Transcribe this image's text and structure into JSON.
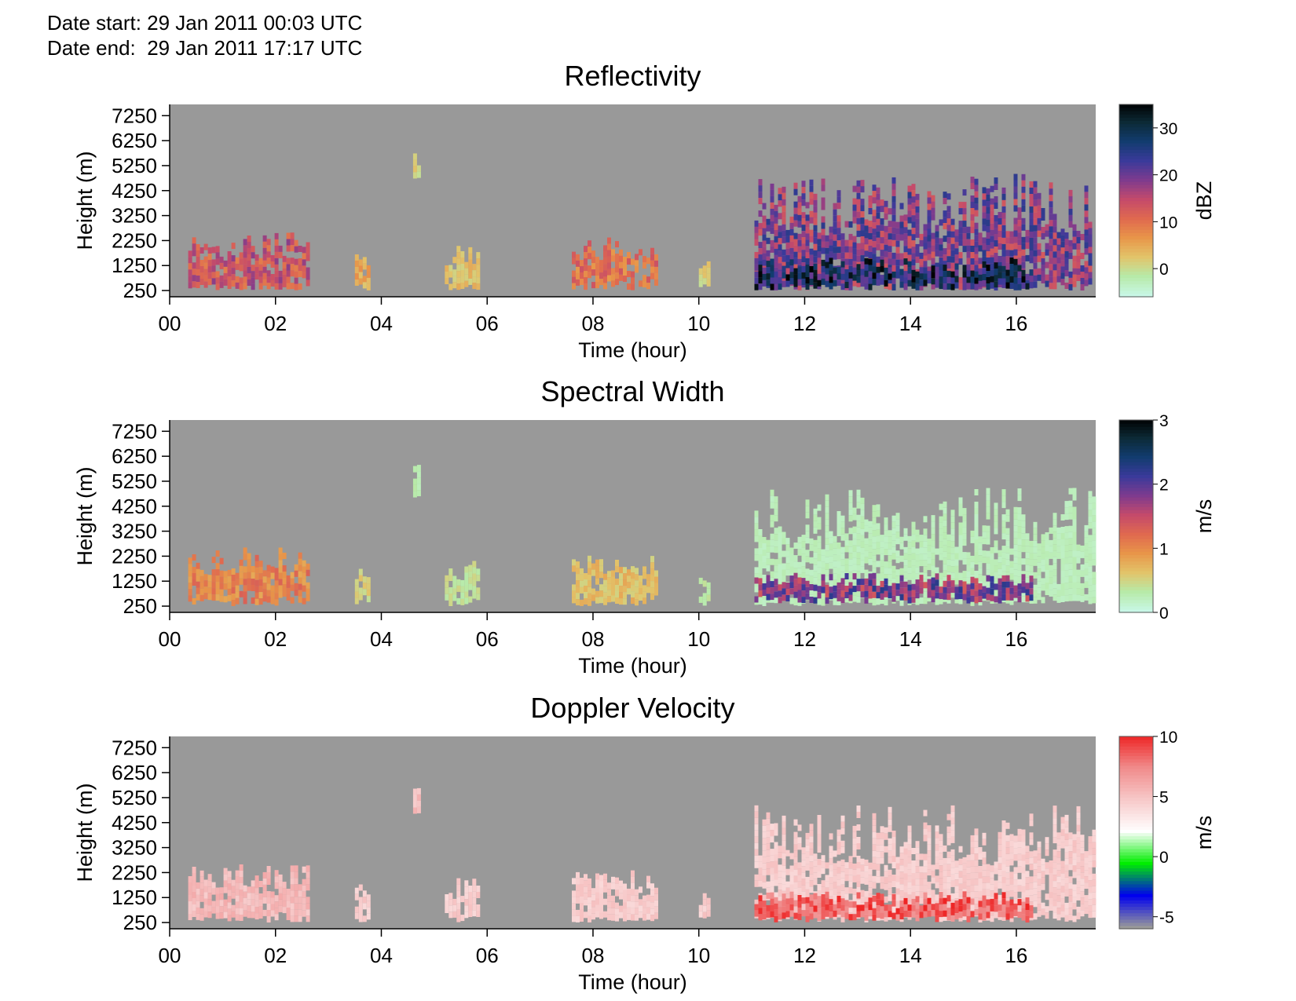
{
  "header": {
    "date_start": "Date start: 29 Jan 2011 00:03 UTC",
    "date_end": "Date end:  29 Jan 2011 17:17 UTC"
  },
  "chart_data": [
    {
      "type": "heatmap",
      "title": "Reflectivity",
      "xlabel": "Time (hour)",
      "ylabel": "Height (m)",
      "x_ticks": [
        "00",
        "02",
        "04",
        "06",
        "08",
        "10",
        "12",
        "14",
        "16"
      ],
      "y_ticks": [
        "250",
        "1250",
        "2250",
        "3250",
        "4250",
        "5250",
        "6250",
        "7250"
      ],
      "xlim": [
        0,
        17.5
      ],
      "ylim": [
        0,
        7700
      ],
      "background_color": "#999999",
      "colorbar": {
        "label": "dBZ",
        "range": [
          -6,
          35
        ],
        "ticks": [
          "0",
          "10",
          "20",
          "30"
        ],
        "tick_values": [
          0,
          10,
          20,
          30
        ],
        "colors": [
          "#c8f7e6",
          "#b7eaa8",
          "#e2c46a",
          "#e89549",
          "#e0694f",
          "#c44a6b",
          "#7e3b8e",
          "#3a3a9a",
          "#123c6f",
          "#0c2a36",
          "#000000"
        ]
      },
      "echo_regions": [
        {
          "t0": 0.35,
          "t1": 2.65,
          "h0": 500,
          "h1": 2600,
          "level": 0.55
        },
        {
          "t0": 3.5,
          "t1": 3.75,
          "h0": 500,
          "h1": 1800,
          "level": 0.3
        },
        {
          "t0": 4.6,
          "t1": 4.72,
          "h0": 4800,
          "h1": 6000,
          "level": 0.2
        },
        {
          "t0": 5.2,
          "t1": 5.85,
          "h0": 500,
          "h1": 2100,
          "level": 0.25
        },
        {
          "t0": 7.6,
          "t1": 9.2,
          "h0": 500,
          "h1": 2400,
          "level": 0.45
        },
        {
          "t0": 10.0,
          "t1": 10.2,
          "h0": 500,
          "h1": 1500,
          "level": 0.2
        },
        {
          "t0": 11.05,
          "t1": 17.4,
          "h0": 500,
          "h1": 5000,
          "level": 0.7
        },
        {
          "t0": 11.05,
          "t1": 16.3,
          "h0": 500,
          "h1": 1600,
          "level": 0.95
        }
      ]
    },
    {
      "type": "heatmap",
      "title": "Spectral Width",
      "xlabel": "Time (hour)",
      "ylabel": "Height (m)",
      "x_ticks": [
        "00",
        "02",
        "04",
        "06",
        "08",
        "10",
        "12",
        "14",
        "16"
      ],
      "y_ticks": [
        "250",
        "1250",
        "2250",
        "3250",
        "4250",
        "5250",
        "6250",
        "7250"
      ],
      "xlim": [
        0,
        17.5
      ],
      "ylim": [
        0,
        7700
      ],
      "background_color": "#999999",
      "colorbar": {
        "label": "m/s",
        "range": [
          0,
          3
        ],
        "ticks": [
          "0",
          "1",
          "2",
          "3"
        ],
        "tick_values": [
          0,
          1,
          2,
          3
        ],
        "colors": [
          "#c8f7e6",
          "#b7eaa8",
          "#e2c46a",
          "#e89549",
          "#e0694f",
          "#c44a6b",
          "#7e3b8e",
          "#3a3a9a",
          "#123c6f",
          "#0c2a36",
          "#000000"
        ]
      },
      "echo_regions": [
        {
          "t0": 0.35,
          "t1": 2.65,
          "h0": 500,
          "h1": 2600,
          "level": 0.4
        },
        {
          "t0": 3.5,
          "t1": 3.75,
          "h0": 500,
          "h1": 1800,
          "level": 0.2
        },
        {
          "t0": 4.6,
          "t1": 4.72,
          "h0": 4800,
          "h1": 6000,
          "level": 0.1
        },
        {
          "t0": 5.2,
          "t1": 5.85,
          "h0": 500,
          "h1": 2100,
          "level": 0.15
        },
        {
          "t0": 7.6,
          "t1": 9.2,
          "h0": 500,
          "h1": 2400,
          "level": 0.25
        },
        {
          "t0": 10.0,
          "t1": 10.2,
          "h0": 500,
          "h1": 1500,
          "level": 0.12
        },
        {
          "t0": 11.05,
          "t1": 17.5,
          "h0": 500,
          "h1": 5000,
          "level": 0.08
        },
        {
          "t0": 11.05,
          "t1": 16.3,
          "h0": 600,
          "h1": 1600,
          "level": 0.7
        }
      ]
    },
    {
      "type": "heatmap",
      "title": "Doppler Velocity",
      "xlabel": "Time (hour)",
      "ylabel": "Height (m)",
      "x_ticks": [
        "00",
        "02",
        "04",
        "06",
        "08",
        "10",
        "12",
        "14",
        "16"
      ],
      "y_ticks": [
        "250",
        "1250",
        "2250",
        "3250",
        "4250",
        "5250",
        "6250",
        "7250"
      ],
      "xlim": [
        0,
        17.5
      ],
      "ylim": [
        0,
        7700
      ],
      "background_color": "#999999",
      "colorbar": {
        "label": "m/s",
        "range": [
          -6,
          10
        ],
        "ticks": [
          "-5",
          "0",
          "5",
          "10"
        ],
        "tick_values": [
          -5,
          0,
          5,
          10
        ],
        "colors": [
          "#999999",
          "#0000ee",
          "#00ee00",
          "#ffffff",
          "#f7c8c8",
          "#f08a8a",
          "#ee2222"
        ]
      },
      "echo_regions": [
        {
          "t0": 0.35,
          "t1": 2.65,
          "h0": 500,
          "h1": 2600,
          "level": 0.4
        },
        {
          "t0": 3.5,
          "t1": 3.75,
          "h0": 500,
          "h1": 1800,
          "level": 0.3
        },
        {
          "t0": 4.6,
          "t1": 4.72,
          "h0": 4800,
          "h1": 6000,
          "level": 0.4
        },
        {
          "t0": 5.2,
          "t1": 5.85,
          "h0": 500,
          "h1": 2100,
          "level": 0.3
        },
        {
          "t0": 7.6,
          "t1": 9.2,
          "h0": 500,
          "h1": 2400,
          "level": 0.3
        },
        {
          "t0": 10.0,
          "t1": 10.2,
          "h0": 500,
          "h1": 1500,
          "level": 0.3
        },
        {
          "t0": 11.05,
          "t1": 17.5,
          "h0": 500,
          "h1": 5000,
          "level": 0.3
        },
        {
          "t0": 11.05,
          "t1": 16.3,
          "h0": 500,
          "h1": 1500,
          "level": 0.8
        }
      ]
    }
  ]
}
